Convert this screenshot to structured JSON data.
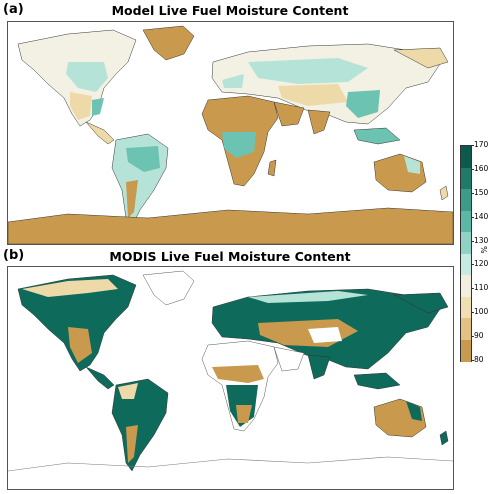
{
  "panels": [
    {
      "label": "(a)",
      "title": "Model Live Fuel Moisture Content"
    },
    {
      "label": "(b)",
      "title": "MODIS Live Fuel Moisture Content"
    }
  ],
  "colorbar": {
    "unit": "%",
    "ticks": [
      "170",
      "160",
      "150",
      "140",
      "130",
      "120",
      "110",
      "100",
      "90",
      "80"
    ],
    "colors": [
      "#0b5a4d",
      "#1f7a68",
      "#3d9b8a",
      "#5cb8a6",
      "#8fd3c4",
      "#c7ebe3",
      "#f2efe0",
      "#f0dfb3",
      "#e3c183",
      "#c99a4e"
    ]
  },
  "colors": {
    "dry": "#c99a4e",
    "mid": "#eed9a8",
    "pale": "#f3f1e4",
    "teal_light": "#b6e3d8",
    "teal": "#6cc3b1",
    "teal_dark": "#0e6a5a",
    "ocean": "#ffffff"
  }
}
